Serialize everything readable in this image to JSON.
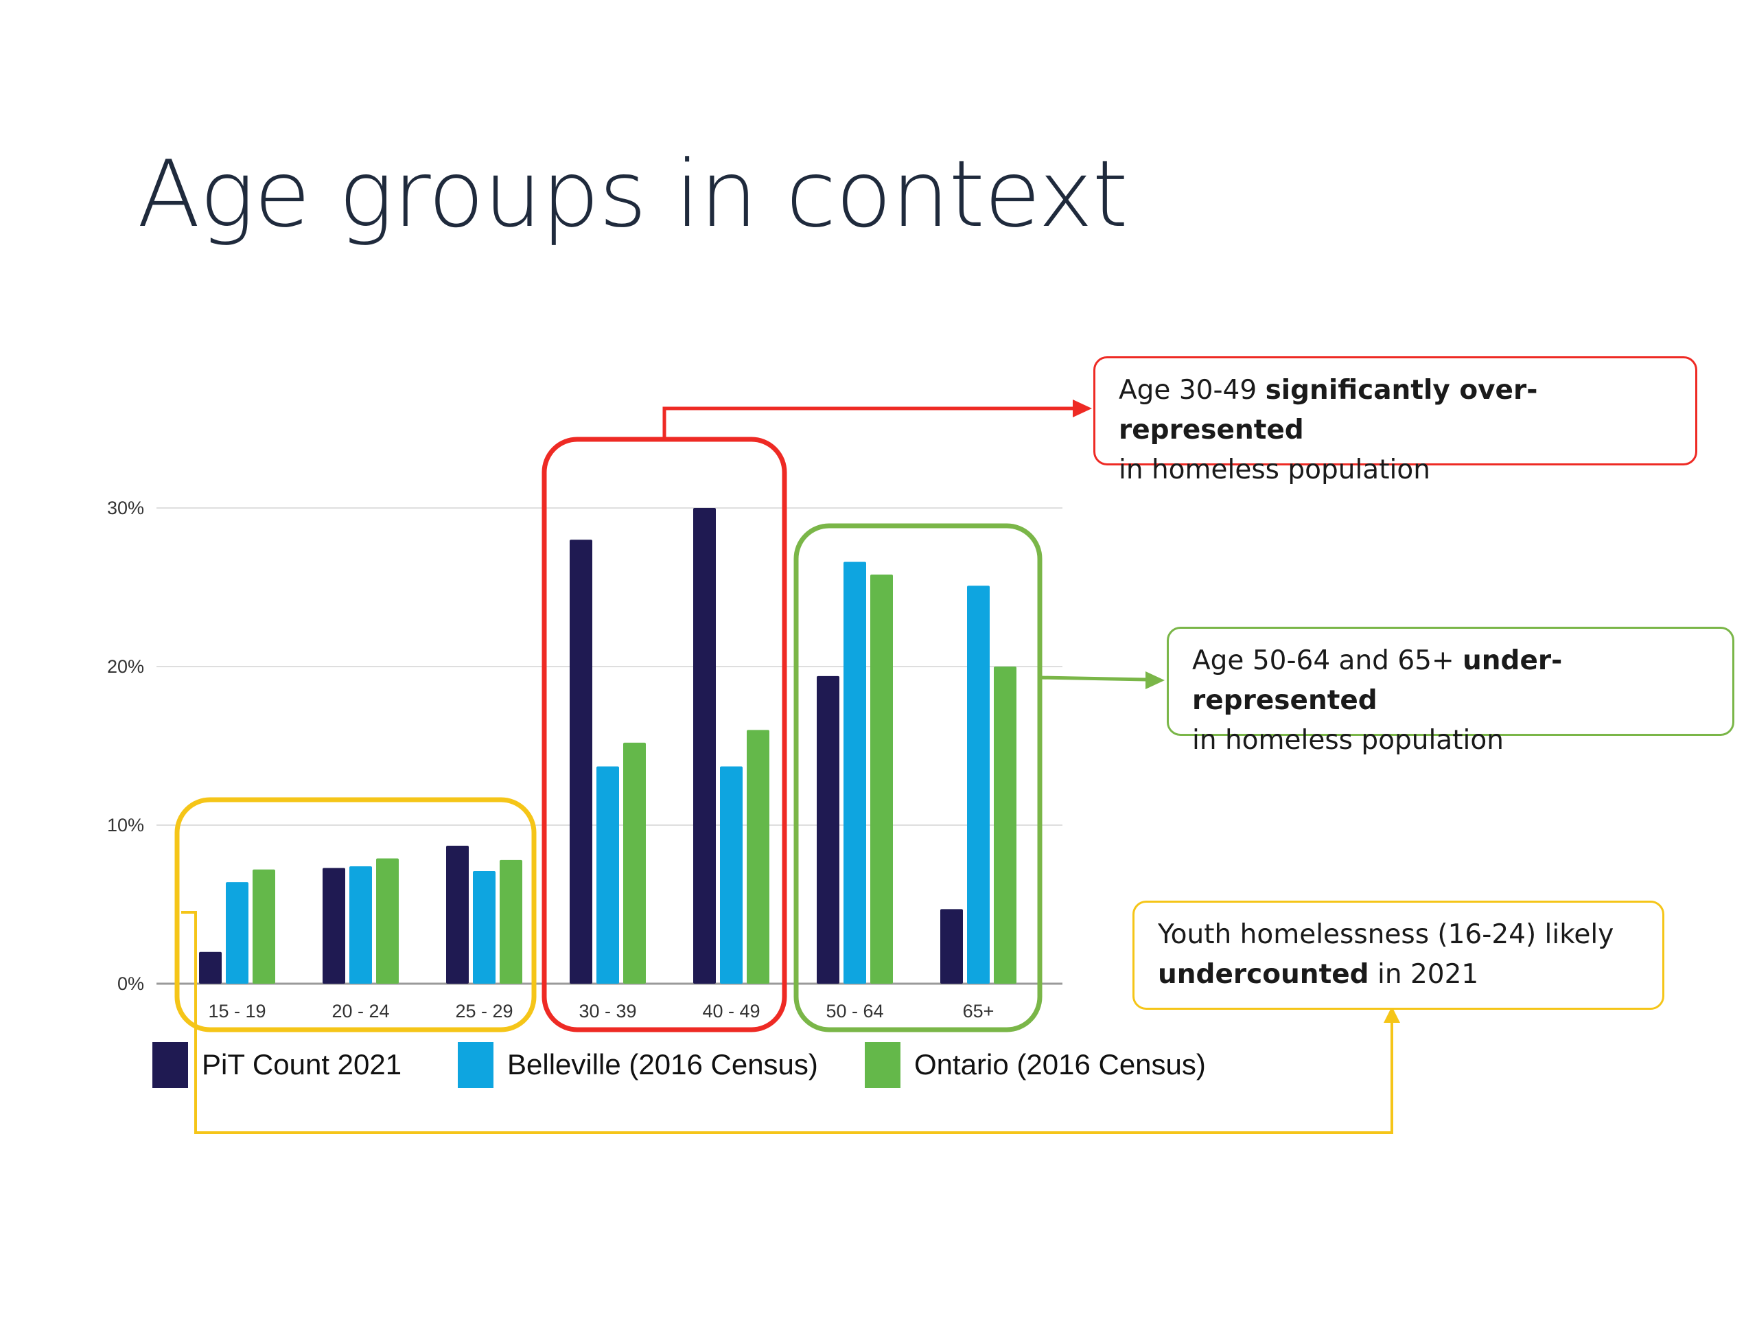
{
  "title": "Age groups in context",
  "chart_data": {
    "type": "bar",
    "categories": [
      "15 - 19",
      "20 - 24",
      "25 - 29",
      "30 - 39",
      "40 - 49",
      "50 - 64",
      "65+"
    ],
    "series": [
      {
        "name": "PiT Count 2021",
        "color": "#1f1a52",
        "values": [
          2.0,
          7.3,
          8.7,
          28.0,
          30.0,
          19.4,
          4.7
        ]
      },
      {
        "name": "Belleville (2016 Census)",
        "color": "#0ea5e0",
        "values": [
          6.4,
          7.4,
          7.1,
          13.7,
          13.7,
          26.6,
          25.1
        ]
      },
      {
        "name": "Ontario (2016 Census)",
        "color": "#64b84a",
        "values": [
          7.2,
          7.9,
          7.8,
          15.2,
          16.0,
          25.8,
          20.0
        ]
      }
    ],
    "y_ticks": [
      "0%",
      "10%",
      "20%",
      "30%"
    ],
    "ylim": [
      0,
      30
    ],
    "grid": true,
    "legend": "bottom"
  },
  "callouts": {
    "red": {
      "pre": "Age 30-49 ",
      "bold": "significantly over-represented",
      "post": "in homeless population"
    },
    "green": {
      "pre": "Age 50-64 and 65+ ",
      "bold": "under-represented",
      "post": "in homeless population"
    },
    "yellow": {
      "pre": "Youth homelessness (16-24) likely",
      "bold": "undercounted",
      "post": " in 2021"
    }
  },
  "highlight_colors": {
    "red": "#ee2a24",
    "green": "#7ab648",
    "yellow": "#f5c518"
  }
}
